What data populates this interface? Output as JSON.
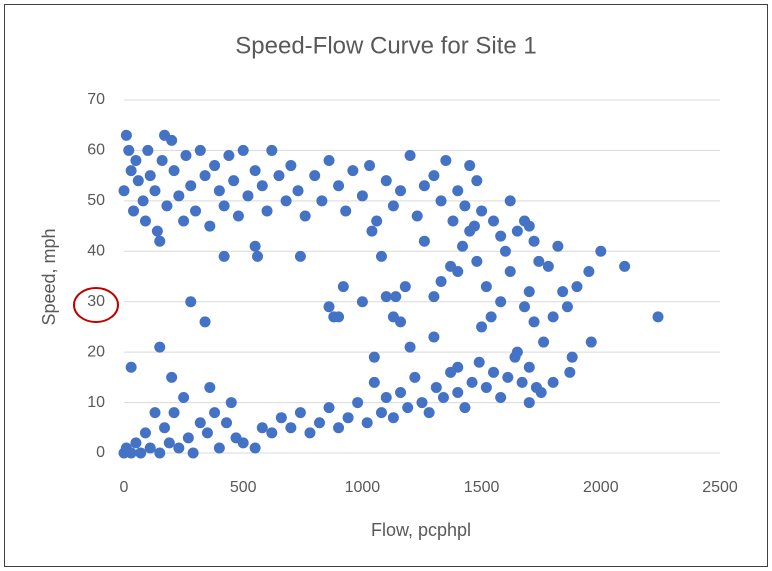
{
  "chart_data": {
    "type": "scatter",
    "title": "Speed-Flow Curve for Site 1",
    "x_label": "Flow, pcphpl",
    "y_label": "Speed, mph",
    "color": "#4472c4",
    "grid": true,
    "xlim": [
      0,
      2500
    ],
    "xticks": [
      0,
      500,
      1000,
      1500,
      2000,
      2500
    ],
    "ylim": [
      0,
      70
    ],
    "yticks": [
      0,
      10,
      20,
      30,
      40,
      50,
      60,
      70
    ],
    "x": [
      0,
      10,
      20,
      30,
      40,
      50,
      60,
      80,
      90,
      100,
      110,
      130,
      140,
      150,
      160,
      170,
      180,
      200,
      210,
      230,
      250,
      260,
      280,
      300,
      320,
      340,
      360,
      380,
      400,
      420,
      440,
      460,
      480,
      500,
      520,
      550,
      580,
      600,
      620,
      650,
      680,
      700,
      730,
      760,
      800,
      830,
      860,
      900,
      930,
      960,
      1000,
      1030,
      1060,
      1100,
      1130,
      1160,
      1200,
      1230,
      1260,
      1300,
      1330,
      1350,
      1380,
      1400,
      1430,
      1450,
      1470,
      1480,
      1500,
      1550,
      1580,
      1620,
      1650,
      1680,
      1700,
      1720,
      550,
      560,
      420,
      740,
      860,
      880,
      900,
      920,
      1000,
      1040,
      1080,
      1100,
      1140,
      1180,
      1130,
      1160,
      1260,
      1300,
      1330,
      1370,
      1400,
      1420,
      1450,
      1480,
      1500,
      1520,
      1540,
      1580,
      1600,
      1620,
      1650,
      1680,
      1700,
      1720,
      1740,
      1760,
      1780,
      1800,
      1820,
      1840,
      1860,
      1880,
      1900,
      1950,
      1960,
      2000,
      2100,
      2240,
      280,
      340,
      150,
      30,
      200,
      1050,
      1200,
      1300,
      1400,
      1700,
      1750,
      0,
      10,
      30,
      50,
      70,
      90,
      110,
      130,
      150,
      170,
      190,
      210,
      230,
      250,
      270,
      290,
      320,
      350,
      360,
      380,
      400,
      430,
      450,
      470,
      500,
      550,
      580,
      620,
      660,
      700,
      740,
      780,
      820,
      860,
      900,
      940,
      980,
      1020,
      1050,
      1080,
      1100,
      1130,
      1160,
      1190,
      1220,
      1250,
      1280,
      1310,
      1340,
      1370,
      1400,
      1430,
      1460,
      1490,
      1520,
      1550,
      1580,
      1610,
      1640,
      1670,
      1700,
      1730,
      1800,
      1870
    ],
    "values": [
      52,
      63,
      60,
      56,
      48,
      58,
      54,
      50,
      46,
      60,
      55,
      52,
      44,
      42,
      58,
      63,
      49,
      62,
      56,
      51,
      46,
      59,
      53,
      48,
      60,
      55,
      45,
      57,
      52,
      49,
      59,
      54,
      47,
      60,
      51,
      56,
      53,
      48,
      60,
      55,
      50,
      57,
      52,
      47,
      55,
      50,
      58,
      53,
      48,
      56,
      51,
      57,
      46,
      54,
      49,
      52,
      59,
      47,
      53,
      55,
      50,
      58,
      46,
      52,
      49,
      57,
      45,
      54,
      48,
      46,
      43,
      50,
      44,
      46,
      45,
      42,
      41,
      39,
      39,
      39,
      29,
      27,
      27,
      33,
      30,
      44,
      39,
      31,
      31,
      33,
      27,
      26,
      42,
      31,
      34,
      37,
      36,
      41,
      44,
      38,
      25,
      33,
      27,
      30,
      40,
      36,
      20,
      29,
      32,
      26,
      38,
      22,
      37,
      27,
      41,
      32,
      29,
      19,
      33,
      36,
      22,
      40,
      37,
      27,
      30,
      26,
      21,
      17,
      15,
      19,
      21,
      23,
      17,
      10,
      12,
      0,
      1,
      0,
      2,
      0,
      4,
      1,
      8,
      0,
      5,
      2,
      8,
      1,
      11,
      3,
      0,
      6,
      4,
      13,
      8,
      1,
      6,
      10,
      3,
      2,
      1,
      5,
      4,
      7,
      5,
      8,
      4,
      6,
      9,
      5,
      7,
      10,
      6,
      14,
      8,
      11,
      7,
      12,
      9,
      15,
      10,
      8,
      13,
      11,
      16,
      12,
      9,
      14,
      18,
      13,
      16,
      11,
      15,
      19,
      14,
      17,
      13,
      14,
      16
    ]
  }
}
